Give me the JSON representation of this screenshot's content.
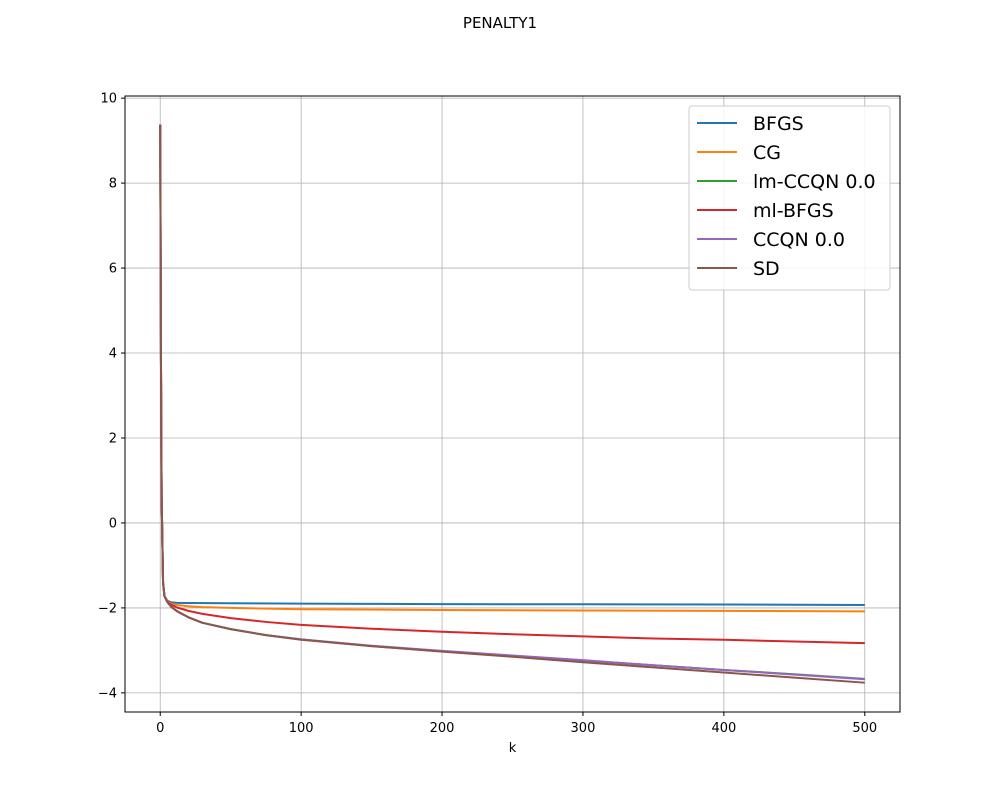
{
  "chart_data": {
    "type": "line",
    "title": "PENALTY1",
    "xlabel": "k",
    "ylabel": "",
    "xlim": [
      -25,
      525
    ],
    "ylim": [
      -4.45,
      10.05
    ],
    "xticks": [
      0,
      100,
      200,
      300,
      400,
      500
    ],
    "yticks": [
      -4,
      -2,
      0,
      2,
      4,
      6,
      8,
      10
    ],
    "grid": true,
    "legend_position": "top-right",
    "series": [
      {
        "name": "BFGS",
        "color": "#1f77b4",
        "x": [
          0,
          0.5,
          1,
          2,
          3,
          5,
          8,
          12,
          20,
          50,
          100,
          150,
          200,
          300,
          400,
          500
        ],
        "y": [
          9.38,
          4.0,
          0.6,
          -1.4,
          -1.72,
          -1.83,
          -1.87,
          -1.88,
          -1.885,
          -1.89,
          -1.9,
          -1.905,
          -1.91,
          -1.915,
          -1.92,
          -1.93
        ]
      },
      {
        "name": "CG",
        "color": "#ff7f0e",
        "x": [
          0,
          0.5,
          1,
          2,
          3,
          5,
          8,
          12,
          20,
          30,
          50,
          100,
          200,
          300,
          400,
          500
        ],
        "y": [
          9.38,
          4.0,
          0.6,
          -1.4,
          -1.72,
          -1.84,
          -1.9,
          -1.93,
          -1.96,
          -1.98,
          -2.0,
          -2.03,
          -2.05,
          -2.06,
          -2.07,
          -2.08
        ]
      },
      {
        "name": "lm-CCQN 0.0",
        "color": "#2ca02c",
        "x": [
          0,
          0.5,
          1,
          2,
          3,
          5,
          8,
          12,
          20,
          30,
          50,
          75,
          100,
          150,
          200,
          250,
          300,
          350,
          400,
          450,
          500
        ],
        "y": [
          9.38,
          4.0,
          0.6,
          -1.4,
          -1.72,
          -1.86,
          -1.98,
          -2.08,
          -2.22,
          -2.35,
          -2.5,
          -2.64,
          -2.74,
          -2.9,
          -3.02,
          -3.13,
          -3.24,
          -3.35,
          -3.46,
          -3.56,
          -3.67
        ]
      },
      {
        "name": "ml-BFGS",
        "color": "#d62728",
        "x": [
          0,
          0.5,
          1,
          2,
          3,
          5,
          8,
          12,
          20,
          30,
          50,
          75,
          100,
          150,
          200,
          250,
          300,
          350,
          400,
          450,
          500
        ],
        "y": [
          9.38,
          4.0,
          0.6,
          -1.4,
          -1.72,
          -1.85,
          -1.93,
          -1.99,
          -2.07,
          -2.14,
          -2.24,
          -2.33,
          -2.4,
          -2.49,
          -2.56,
          -2.62,
          -2.67,
          -2.72,
          -2.75,
          -2.79,
          -2.83
        ]
      },
      {
        "name": "CCQN 0.0",
        "color": "#9467bd",
        "x": [
          0,
          0.5,
          1,
          2,
          3,
          5,
          8,
          12,
          20,
          30,
          50,
          75,
          100,
          150,
          200,
          250,
          300,
          350,
          400,
          450,
          500
        ],
        "y": [
          9.38,
          4.0,
          0.6,
          -1.4,
          -1.72,
          -1.86,
          -1.98,
          -2.08,
          -2.22,
          -2.35,
          -2.5,
          -2.64,
          -2.74,
          -2.89,
          -3.01,
          -3.12,
          -3.23,
          -3.35,
          -3.46,
          -3.57,
          -3.68
        ]
      },
      {
        "name": "SD",
        "color": "#8c564b",
        "x": [
          0,
          0.5,
          1,
          2,
          3,
          5,
          8,
          12,
          20,
          30,
          50,
          75,
          100,
          150,
          200,
          250,
          300,
          350,
          400,
          450,
          500
        ],
        "y": [
          9.38,
          4.0,
          0.6,
          -1.4,
          -1.72,
          -1.86,
          -1.98,
          -2.08,
          -2.22,
          -2.35,
          -2.5,
          -2.64,
          -2.75,
          -2.9,
          -3.03,
          -3.15,
          -3.28,
          -3.4,
          -3.52,
          -3.64,
          -3.76
        ]
      }
    ]
  }
}
